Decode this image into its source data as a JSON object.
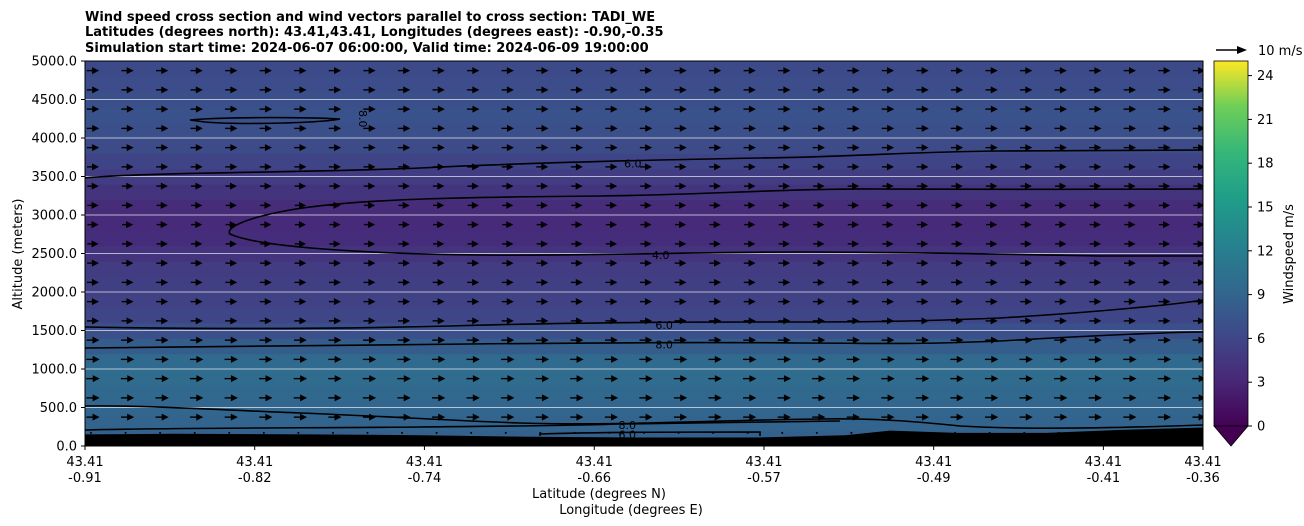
{
  "chart_data": {
    "type": "contourf_quiver",
    "title_lines": [
      "Wind speed cross section and wind vectors parallel to cross section: TADI_WE",
      "Latitudes (degrees north): 43.41,43.41, Longitudes (degrees east): -0.90,-0.35",
      "Simulation start time: 2024-06-07 06:00:00, Valid time: 2024-06-09 19:00:00"
    ],
    "ylabel": "Altitude (meters)",
    "xlabel_lines": [
      "Latitude (degrees N)",
      "Longitude (degrees E)"
    ],
    "ylim": [
      0,
      5000
    ],
    "y_ticks": [
      "0.0",
      "500.0",
      "1000.0",
      "1500.0",
      "2000.0",
      "2500.0",
      "3000.0",
      "3500.0",
      "4000.0",
      "4500.0",
      "5000.0"
    ],
    "y_tick_values": [
      0,
      500,
      1000,
      1500,
      2000,
      2500,
      3000,
      3500,
      4000,
      4500,
      5000
    ],
    "x_ticks": [
      {
        "lat": "43.41",
        "lon": "-0.91",
        "pos": 0.0
      },
      {
        "lat": "43.41",
        "lon": "-0.82",
        "pos": 0.1518
      },
      {
        "lat": "43.41",
        "lon": "-0.74",
        "pos": 0.3036
      },
      {
        "lat": "43.41",
        "lon": "-0.66",
        "pos": 0.4555
      },
      {
        "lat": "43.41",
        "lon": "-0.57",
        "pos": 0.6073
      },
      {
        "lat": "43.41",
        "lon": "-0.49",
        "pos": 0.7591
      },
      {
        "lat": "43.41",
        "lon": "-0.41",
        "pos": 0.9109
      },
      {
        "lat": "43.41",
        "lon": "-0.36",
        "pos": 1.0
      }
    ],
    "colorbar": {
      "label": "Windspeed m/s",
      "range": [
        0,
        25
      ],
      "ticks": [
        "0",
        "3",
        "6",
        "9",
        "12",
        "15",
        "18",
        "21",
        "24"
      ],
      "tick_values": [
        0,
        3,
        6,
        9,
        12,
        15,
        18,
        21,
        24
      ],
      "extend": "min"
    },
    "quiver_key": "10 m/s",
    "speed_profile": [
      {
        "alt": 100,
        "speed": 8.6
      },
      {
        "alt": 300,
        "speed": 9.0
      },
      {
        "alt": 500,
        "speed": 9.2
      },
      {
        "alt": 700,
        "speed": 9.5
      },
      {
        "alt": 900,
        "speed": 9.8
      },
      {
        "alt": 1100,
        "speed": 9.6
      },
      {
        "alt": 1300,
        "speed": 8.3
      },
      {
        "alt": 1500,
        "speed": 7.0
      },
      {
        "alt": 1700,
        "speed": 6.0
      },
      {
        "alt": 1900,
        "speed": 5.6
      },
      {
        "alt": 2100,
        "speed": 5.3
      },
      {
        "alt": 2300,
        "speed": 5.0
      },
      {
        "alt": 2500,
        "speed": 4.3
      },
      {
        "alt": 2700,
        "speed": 3.6
      },
      {
        "alt": 2900,
        "speed": 3.3
      },
      {
        "alt": 3100,
        "speed": 3.5
      },
      {
        "alt": 3300,
        "speed": 4.3
      },
      {
        "alt": 3500,
        "speed": 5.0
      },
      {
        "alt": 3700,
        "speed": 5.8
      },
      {
        "alt": 3900,
        "speed": 6.5
      },
      {
        "alt": 4100,
        "speed": 7.0
      },
      {
        "alt": 4300,
        "speed": 7.2
      },
      {
        "alt": 4500,
        "speed": 7.0
      },
      {
        "alt": 4700,
        "speed": 6.6
      },
      {
        "alt": 4900,
        "speed": 6.4
      }
    ],
    "contour_labels": [
      {
        "text": "6.0",
        "alt": 3670,
        "pos": 0.49
      },
      {
        "text": "4.0",
        "alt": 2480,
        "pos": 0.515
      },
      {
        "text": "6.0",
        "alt": 1570,
        "pos": 0.518
      },
      {
        "text": "8.0",
        "alt": 1320,
        "pos": 0.518
      },
      {
        "text": "8.0",
        "alt": 270,
        "pos": 0.485
      },
      {
        "text": "6.0",
        "alt": 150,
        "pos": 0.485
      }
    ],
    "rotated_labels": [
      {
        "text": "8.0",
        "alt": 4250,
        "pos": 0.245
      }
    ],
    "terrain_profile": [
      {
        "pos": 0.0,
        "alt": 150
      },
      {
        "pos": 0.08,
        "alt": 160
      },
      {
        "pos": 0.2,
        "alt": 150
      },
      {
        "pos": 0.3,
        "alt": 140
      },
      {
        "pos": 0.4,
        "alt": 120
      },
      {
        "pos": 0.5,
        "alt": 110
      },
      {
        "pos": 0.6,
        "alt": 110
      },
      {
        "pos": 0.68,
        "alt": 140
      },
      {
        "pos": 0.72,
        "alt": 200
      },
      {
        "pos": 0.78,
        "alt": 170
      },
      {
        "pos": 0.86,
        "alt": 170
      },
      {
        "pos": 0.93,
        "alt": 210
      },
      {
        "pos": 1.0,
        "alt": 240
      }
    ]
  }
}
